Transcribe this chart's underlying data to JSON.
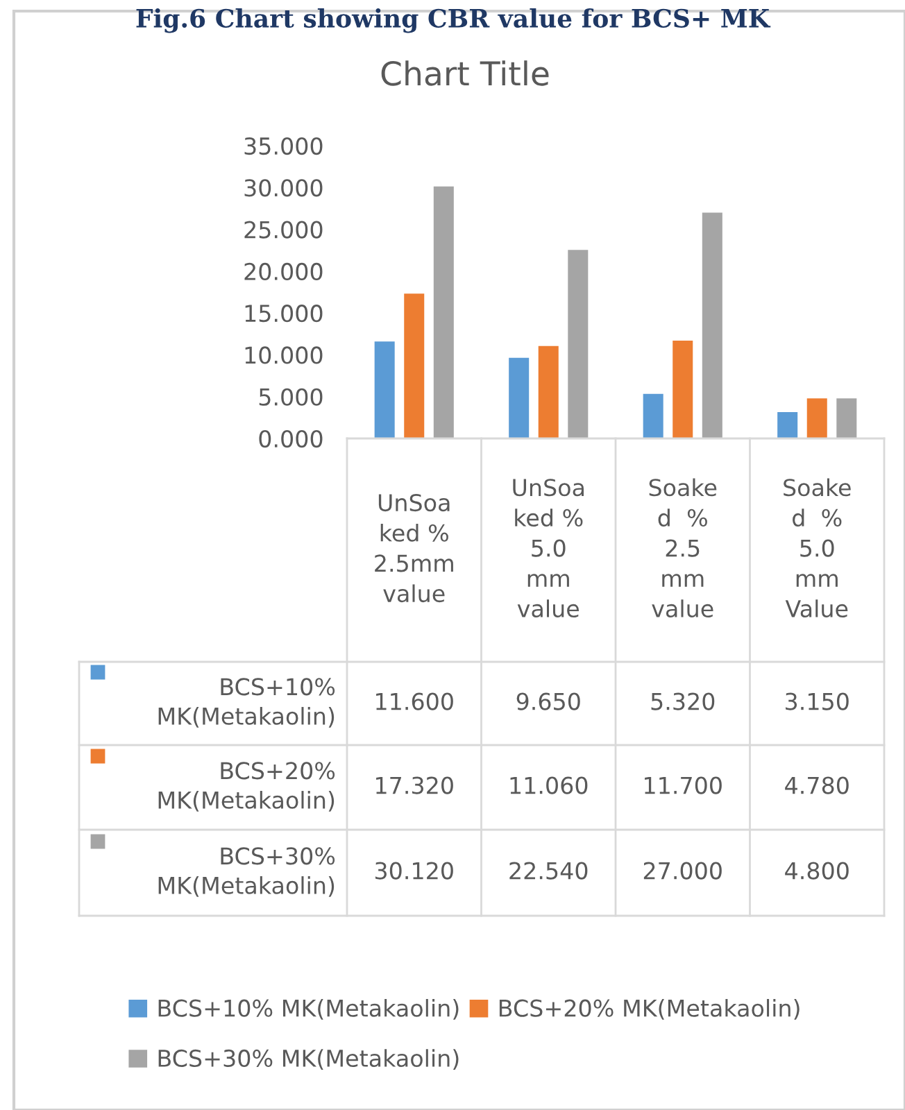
{
  "chart_data": {
    "type": "bar",
    "title": "Chart Title",
    "annotations": [
      "Fig.6 Chart showing CBR value for BCS+ MK"
    ],
    "categories": [
      "UnSoa\nked %\n2.5mm\nvalue",
      "UnSoa\nked %\n5.0\nmm\nvalue",
      "Soake\nd  %\n2.5\nmm\nvalue",
      "Soake\nd  %\n5.0\nmm\nValue"
    ],
    "series": [
      {
        "name": "BCS+10% MK(Metakaolin)",
        "color": "#5b9bd5",
        "values": [
          11.6,
          9.65,
          5.32,
          3.15
        ],
        "value_labels": [
          "11.600",
          "9.650",
          "5.320",
          "3.150"
        ]
      },
      {
        "name": "BCS+20% MK(Metakaolin)",
        "color": "#ed7d31",
        "values": [
          17.32,
          11.06,
          11.7,
          4.78
        ],
        "value_labels": [
          "17.320",
          "11.060",
          "11.700",
          "4.780"
        ]
      },
      {
        "name": "BCS+30% MK(Metakaolin)",
        "color": "#a5a5a5",
        "values": [
          30.12,
          22.54,
          27.0,
          4.8
        ],
        "value_labels": [
          "30.120",
          "22.540",
          "27.000",
          "4.800"
        ]
      }
    ],
    "ylim": [
      0,
      35
    ],
    "yticks": [
      {
        "value": 0,
        "label": "0.000"
      },
      {
        "value": 5,
        "label": "5.000"
      },
      {
        "value": 10,
        "label": "10.000"
      },
      {
        "value": 15,
        "label": "15.000"
      },
      {
        "value": 20,
        "label": "20.000"
      },
      {
        "value": 25,
        "label": "25.000"
      },
      {
        "value": 30,
        "label": "30.000"
      },
      {
        "value": 35,
        "label": "35.000"
      }
    ],
    "grid": false,
    "legend": "bottom"
  }
}
